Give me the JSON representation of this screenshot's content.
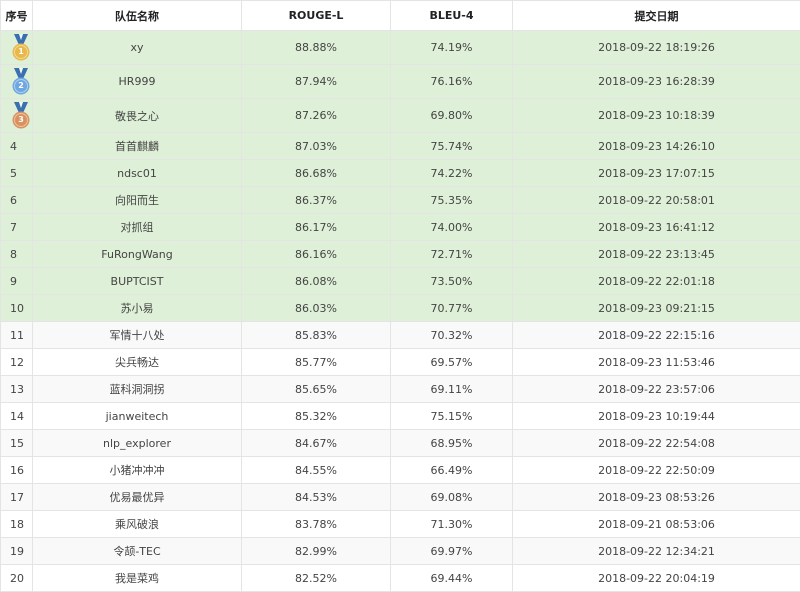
{
  "columns": {
    "rank": "序号",
    "team": "队伍名称",
    "rouge": "ROUGE-L",
    "bleu": "BLEU-4",
    "date": "提交日期"
  },
  "colors": {
    "top_row_bg": "#dff0d8",
    "gold": "#e8b84a",
    "silver": "#6fa8e0",
    "bronze": "#d9925e"
  },
  "rows": [
    {
      "rank": "1",
      "medal": "gold-medal-icon",
      "team": "xy",
      "rouge": "88.88%",
      "bleu": "74.19%",
      "date": "2018-09-22 18:19:26"
    },
    {
      "rank": "2",
      "medal": "silver-medal-icon",
      "team": "HR999",
      "rouge": "87.94%",
      "bleu": "76.16%",
      "date": "2018-09-23 16:28:39"
    },
    {
      "rank": "3",
      "medal": "bronze-medal-icon",
      "team": "敬畏之心",
      "rouge": "87.26%",
      "bleu": "69.80%",
      "date": "2018-09-23 10:18:39"
    },
    {
      "rank": "4",
      "team": "首首麒麟",
      "rouge": "87.03%",
      "bleu": "75.74%",
      "date": "2018-09-23 14:26:10"
    },
    {
      "rank": "5",
      "team": "ndsc01",
      "rouge": "86.68%",
      "bleu": "74.22%",
      "date": "2018-09-23 17:07:15"
    },
    {
      "rank": "6",
      "team": "向阳而生",
      "rouge": "86.37%",
      "bleu": "75.35%",
      "date": "2018-09-22 20:58:01"
    },
    {
      "rank": "7",
      "team": "对抓组",
      "rouge": "86.17%",
      "bleu": "74.00%",
      "date": "2018-09-23 16:41:12"
    },
    {
      "rank": "8",
      "team": "FuRongWang",
      "rouge": "86.16%",
      "bleu": "72.71%",
      "date": "2018-09-22 23:13:45"
    },
    {
      "rank": "9",
      "team": "BUPTCIST",
      "rouge": "86.08%",
      "bleu": "73.50%",
      "date": "2018-09-22 22:01:18"
    },
    {
      "rank": "10",
      "team": "苏小易",
      "rouge": "86.03%",
      "bleu": "70.77%",
      "date": "2018-09-23 09:21:15"
    },
    {
      "rank": "11",
      "team": "军情十八处",
      "rouge": "85.83%",
      "bleu": "70.32%",
      "date": "2018-09-22 22:15:16"
    },
    {
      "rank": "12",
      "team": "尖兵畅达",
      "rouge": "85.77%",
      "bleu": "69.57%",
      "date": "2018-09-23 11:53:46"
    },
    {
      "rank": "13",
      "team": "蓝科洞洞拐",
      "rouge": "85.65%",
      "bleu": "69.11%",
      "date": "2018-09-22 23:57:06"
    },
    {
      "rank": "14",
      "team": "jianweitech",
      "rouge": "85.32%",
      "bleu": "75.15%",
      "date": "2018-09-23 10:19:44"
    },
    {
      "rank": "15",
      "team": "nlp_explorer",
      "rouge": "84.67%",
      "bleu": "68.95%",
      "date": "2018-09-22 22:54:08"
    },
    {
      "rank": "16",
      "team": "小猪冲冲冲",
      "rouge": "84.55%",
      "bleu": "66.49%",
      "date": "2018-09-22 22:50:09"
    },
    {
      "rank": "17",
      "team": "优易最优异",
      "rouge": "84.53%",
      "bleu": "69.08%",
      "date": "2018-09-23 08:53:26"
    },
    {
      "rank": "18",
      "team": "乘风破浪",
      "rouge": "83.78%",
      "bleu": "71.30%",
      "date": "2018-09-21 08:53:06"
    },
    {
      "rank": "19",
      "team": "令颉-TEC",
      "rouge": "82.99%",
      "bleu": "69.97%",
      "date": "2018-09-22 12:34:21"
    },
    {
      "rank": "20",
      "team": "我是菜鸡",
      "rouge": "82.52%",
      "bleu": "69.44%",
      "date": "2018-09-22 20:04:19"
    }
  ]
}
